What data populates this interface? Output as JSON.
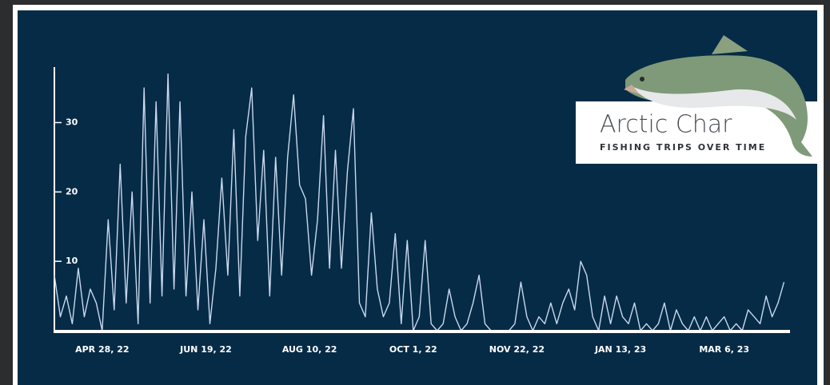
{
  "chart_data": {
    "type": "line",
    "title": "Arctic Char",
    "subtitle": "FISHING TRIPS OVER TIME",
    "x": [
      "2022-04-04",
      "2022-04-07",
      "2022-04-10",
      "2022-04-13",
      "2022-04-16",
      "2022-04-19",
      "2022-04-22",
      "2022-04-25",
      "2022-04-28",
      "2022-05-01",
      "2022-05-04",
      "2022-05-07",
      "2022-05-10",
      "2022-05-13",
      "2022-05-16",
      "2022-05-19",
      "2022-05-22",
      "2022-05-25",
      "2022-05-28",
      "2022-05-31",
      "2022-06-03",
      "2022-06-06",
      "2022-06-09",
      "2022-06-12",
      "2022-06-15",
      "2022-06-18",
      "2022-06-21",
      "2022-06-24",
      "2022-06-27",
      "2022-06-30",
      "2022-07-03",
      "2022-07-06",
      "2022-07-09",
      "2022-07-12",
      "2022-07-15",
      "2022-07-18",
      "2022-07-21",
      "2022-07-24",
      "2022-07-27",
      "2022-07-30",
      "2022-08-02",
      "2022-08-05",
      "2022-08-08",
      "2022-08-11",
      "2022-08-14",
      "2022-08-17",
      "2022-08-20",
      "2022-08-23",
      "2022-08-26",
      "2022-08-29",
      "2022-09-01",
      "2022-09-04",
      "2022-09-07",
      "2022-09-10",
      "2022-09-13",
      "2022-09-16",
      "2022-09-19",
      "2022-09-22",
      "2022-09-25",
      "2022-09-28",
      "2022-10-01",
      "2022-10-04",
      "2022-10-07",
      "2022-10-10",
      "2022-10-13",
      "2022-10-16",
      "2022-10-19",
      "2022-10-22",
      "2022-10-25",
      "2022-10-28",
      "2022-10-31",
      "2022-11-03",
      "2022-11-06",
      "2022-11-09",
      "2022-11-12",
      "2022-11-15",
      "2022-11-18",
      "2022-11-21",
      "2022-11-24",
      "2022-11-27",
      "2022-11-30",
      "2022-12-03",
      "2022-12-06",
      "2022-12-09",
      "2022-12-12",
      "2022-12-15",
      "2022-12-18",
      "2022-12-21",
      "2022-12-24",
      "2022-12-27",
      "2022-12-30",
      "2023-01-02",
      "2023-01-05",
      "2023-01-08",
      "2023-01-11",
      "2023-01-14",
      "2023-01-17",
      "2023-01-20",
      "2023-01-23",
      "2023-01-26",
      "2023-01-29",
      "2023-02-01",
      "2023-02-04",
      "2023-02-07",
      "2023-02-10",
      "2023-02-13",
      "2023-02-16",
      "2023-02-19",
      "2023-02-22",
      "2023-02-25",
      "2023-02-28",
      "2023-03-03",
      "2023-03-06",
      "2023-03-09",
      "2023-03-12",
      "2023-03-15",
      "2023-03-18",
      "2023-03-21",
      "2023-03-24",
      "2023-03-27",
      "2023-03-30",
      "2023-04-02",
      "2023-04-05"
    ],
    "series": [
      {
        "color": "#c9d8ee",
        "values": [
          8,
          2,
          5,
          1,
          9,
          2,
          6,
          4,
          0,
          16,
          3,
          24,
          4,
          20,
          1,
          35,
          4,
          33,
          5,
          37,
          6,
          33,
          5,
          20,
          3,
          16,
          1,
          9,
          22,
          8,
          29,
          5,
          28,
          35,
          13,
          26,
          5,
          25,
          8,
          25,
          34,
          21,
          19,
          8,
          16,
          31,
          9,
          26,
          9,
          23,
          32,
          4,
          2,
          17,
          6,
          2,
          4,
          14,
          1,
          13,
          0,
          2,
          13,
          1,
          0,
          1,
          6,
          2,
          0,
          1,
          4,
          8,
          1,
          0,
          0,
          0,
          0,
          1,
          7,
          2,
          0,
          2,
          1,
          4,
          1,
          4,
          6,
          3,
          10,
          8,
          2,
          0,
          5,
          1,
          5,
          2,
          1,
          4,
          0,
          1,
          0,
          1,
          4,
          0,
          3,
          1,
          0,
          2,
          0,
          2,
          0,
          1,
          2,
          0,
          1,
          0,
          3,
          2,
          1,
          5,
          2,
          4,
          7
        ]
      }
    ],
    "xlim": [
      "2022-04-04",
      "2023-04-08"
    ],
    "xticks": [
      {
        "value": "2022-04-28",
        "label": "APR 28, 22"
      },
      {
        "value": "2022-06-19",
        "label": "JUN 19, 22"
      },
      {
        "value": "2022-08-10",
        "label": "AUG 10, 22"
      },
      {
        "value": "2022-10-01",
        "label": "OCT 1, 22"
      },
      {
        "value": "2022-11-22",
        "label": "NOV 22, 22"
      },
      {
        "value": "2023-01-13",
        "label": "JAN 13, 23"
      },
      {
        "value": "2023-03-06",
        "label": "MAR 6, 23"
      }
    ],
    "ylim": [
      0,
      38
    ],
    "yticks": [
      10,
      20,
      30
    ]
  }
}
